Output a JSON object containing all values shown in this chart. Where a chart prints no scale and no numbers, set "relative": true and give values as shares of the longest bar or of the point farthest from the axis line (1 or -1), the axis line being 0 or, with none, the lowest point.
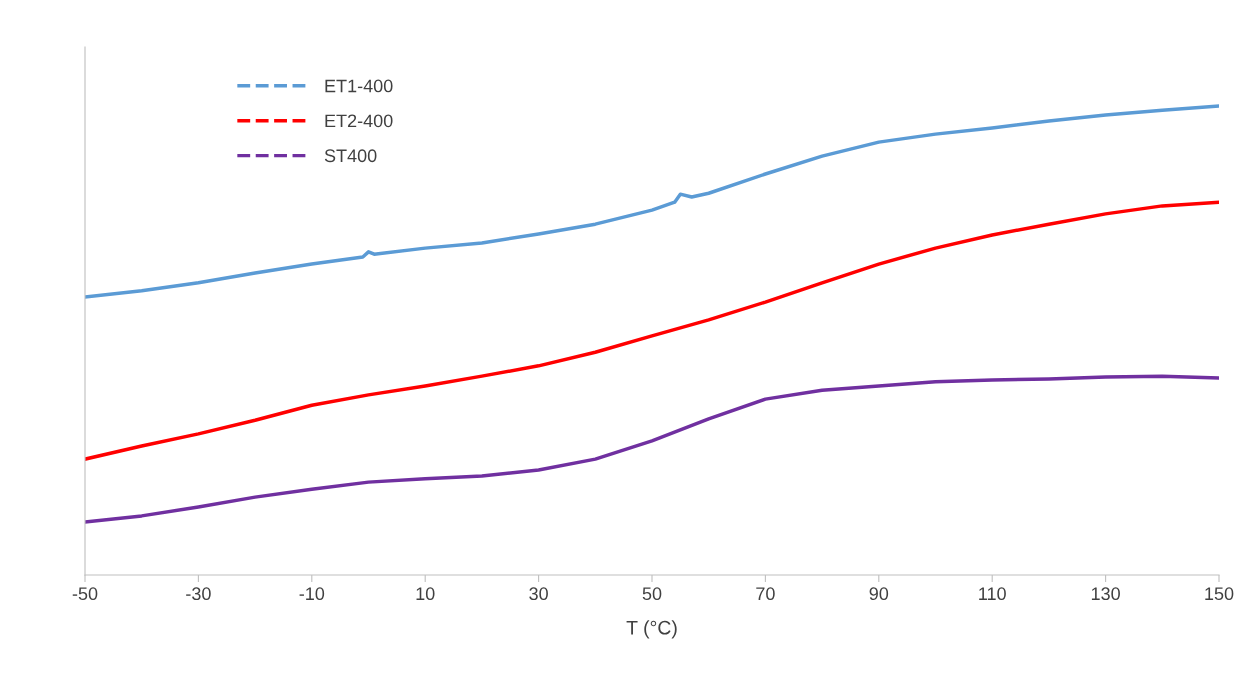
{
  "chart_data": {
    "type": "line",
    "xlabel": "T (°C)",
    "relative": true,
    "xlim": [
      -50,
      150
    ],
    "xticks": [
      -50,
      -30,
      -10,
      10,
      30,
      50,
      70,
      90,
      110,
      130,
      150
    ],
    "tick_labels": "x",
    "grid": false,
    "legend": "top left",
    "marker": "none",
    "line_style": "solid",
    "series": [
      {
        "name": "ET1-400",
        "color": "#5b9bd5",
        "x": [
          -50,
          -40,
          -30,
          -20,
          -10,
          -1,
          0,
          1,
          10,
          20,
          30,
          40,
          50,
          54,
          55,
          57,
          60,
          70,
          80,
          90,
          100,
          110,
          120,
          130,
          140,
          150
        ],
        "values": [
          0.593,
          0.606,
          0.623,
          0.644,
          0.663,
          0.678,
          0.689,
          0.684,
          0.697,
          0.708,
          0.727,
          0.748,
          0.778,
          0.795,
          0.812,
          0.806,
          0.814,
          0.855,
          0.893,
          0.923,
          0.94,
          0.953,
          0.968,
          0.981,
          0.991,
          1
        ]
      },
      {
        "name": "ET2-400",
        "color": "#ff0000",
        "x": [
          -50,
          -40,
          -30,
          -20,
          -10,
          0,
          10,
          20,
          30,
          40,
          50,
          60,
          70,
          80,
          90,
          100,
          110,
          120,
          130,
          140,
          150
        ],
        "values": [
          0.247,
          0.275,
          0.301,
          0.33,
          0.362,
          0.384,
          0.403,
          0.424,
          0.446,
          0.475,
          0.51,
          0.544,
          0.582,
          0.623,
          0.663,
          0.697,
          0.725,
          0.748,
          0.77,
          0.787,
          0.795
        ]
      },
      {
        "name": "ST400",
        "color": "#7030a0",
        "x": [
          -50,
          -40,
          -30,
          -20,
          -10,
          0,
          10,
          20,
          30,
          40,
          50,
          60,
          70,
          80,
          90,
          100,
          110,
          120,
          130,
          140,
          150
        ],
        "values": [
          0.113,
          0.126,
          0.145,
          0.166,
          0.183,
          0.198,
          0.205,
          0.211,
          0.224,
          0.247,
          0.286,
          0.333,
          0.375,
          0.394,
          0.403,
          0.412,
          0.416,
          0.418,
          0.422,
          0.424,
          0.42
        ]
      }
    ]
  }
}
